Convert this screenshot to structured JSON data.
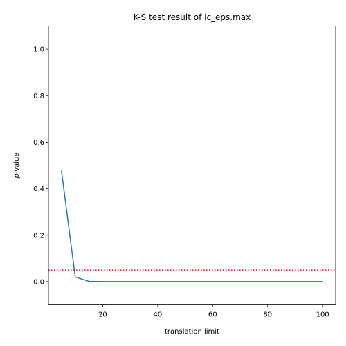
{
  "chart_data": {
    "type": "line",
    "title": "K-S test result of ic_eps.max",
    "xlabel": "translation limit",
    "ylabel_italic": "p",
    "ylabel_rest": "-value",
    "xlim": [
      0.25,
      104.75
    ],
    "ylim": [
      -0.1,
      1.1
    ],
    "xticks": [
      20,
      40,
      60,
      80,
      100
    ],
    "xtick_labels": [
      "20",
      "40",
      "60",
      "80",
      "100"
    ],
    "yticks": [
      0.0,
      0.2,
      0.4,
      0.6,
      0.8,
      1.0
    ],
    "ytick_labels": [
      "0.0",
      "0.2",
      "0.4",
      "0.6",
      "0.8",
      "1.0"
    ],
    "grid": false,
    "series": [
      {
        "x": [
          5,
          10,
          15,
          20,
          25,
          30,
          35,
          40,
          45,
          50,
          55,
          60,
          65,
          70,
          75,
          80,
          85,
          90,
          95,
          100
        ],
        "values": [
          0.476,
          0.02,
          0.001,
          0.0,
          0.0,
          0.0,
          0.0,
          0.0,
          0.0,
          0.0,
          0.0,
          0.0,
          0.0,
          0.0,
          0.0,
          0.0,
          0.0,
          0.0,
          0.0,
          0.0
        ],
        "color": "#1f77b4"
      }
    ],
    "threshold": {
      "value": 0.05,
      "color": "#ff0000",
      "style": "dotted"
    }
  }
}
